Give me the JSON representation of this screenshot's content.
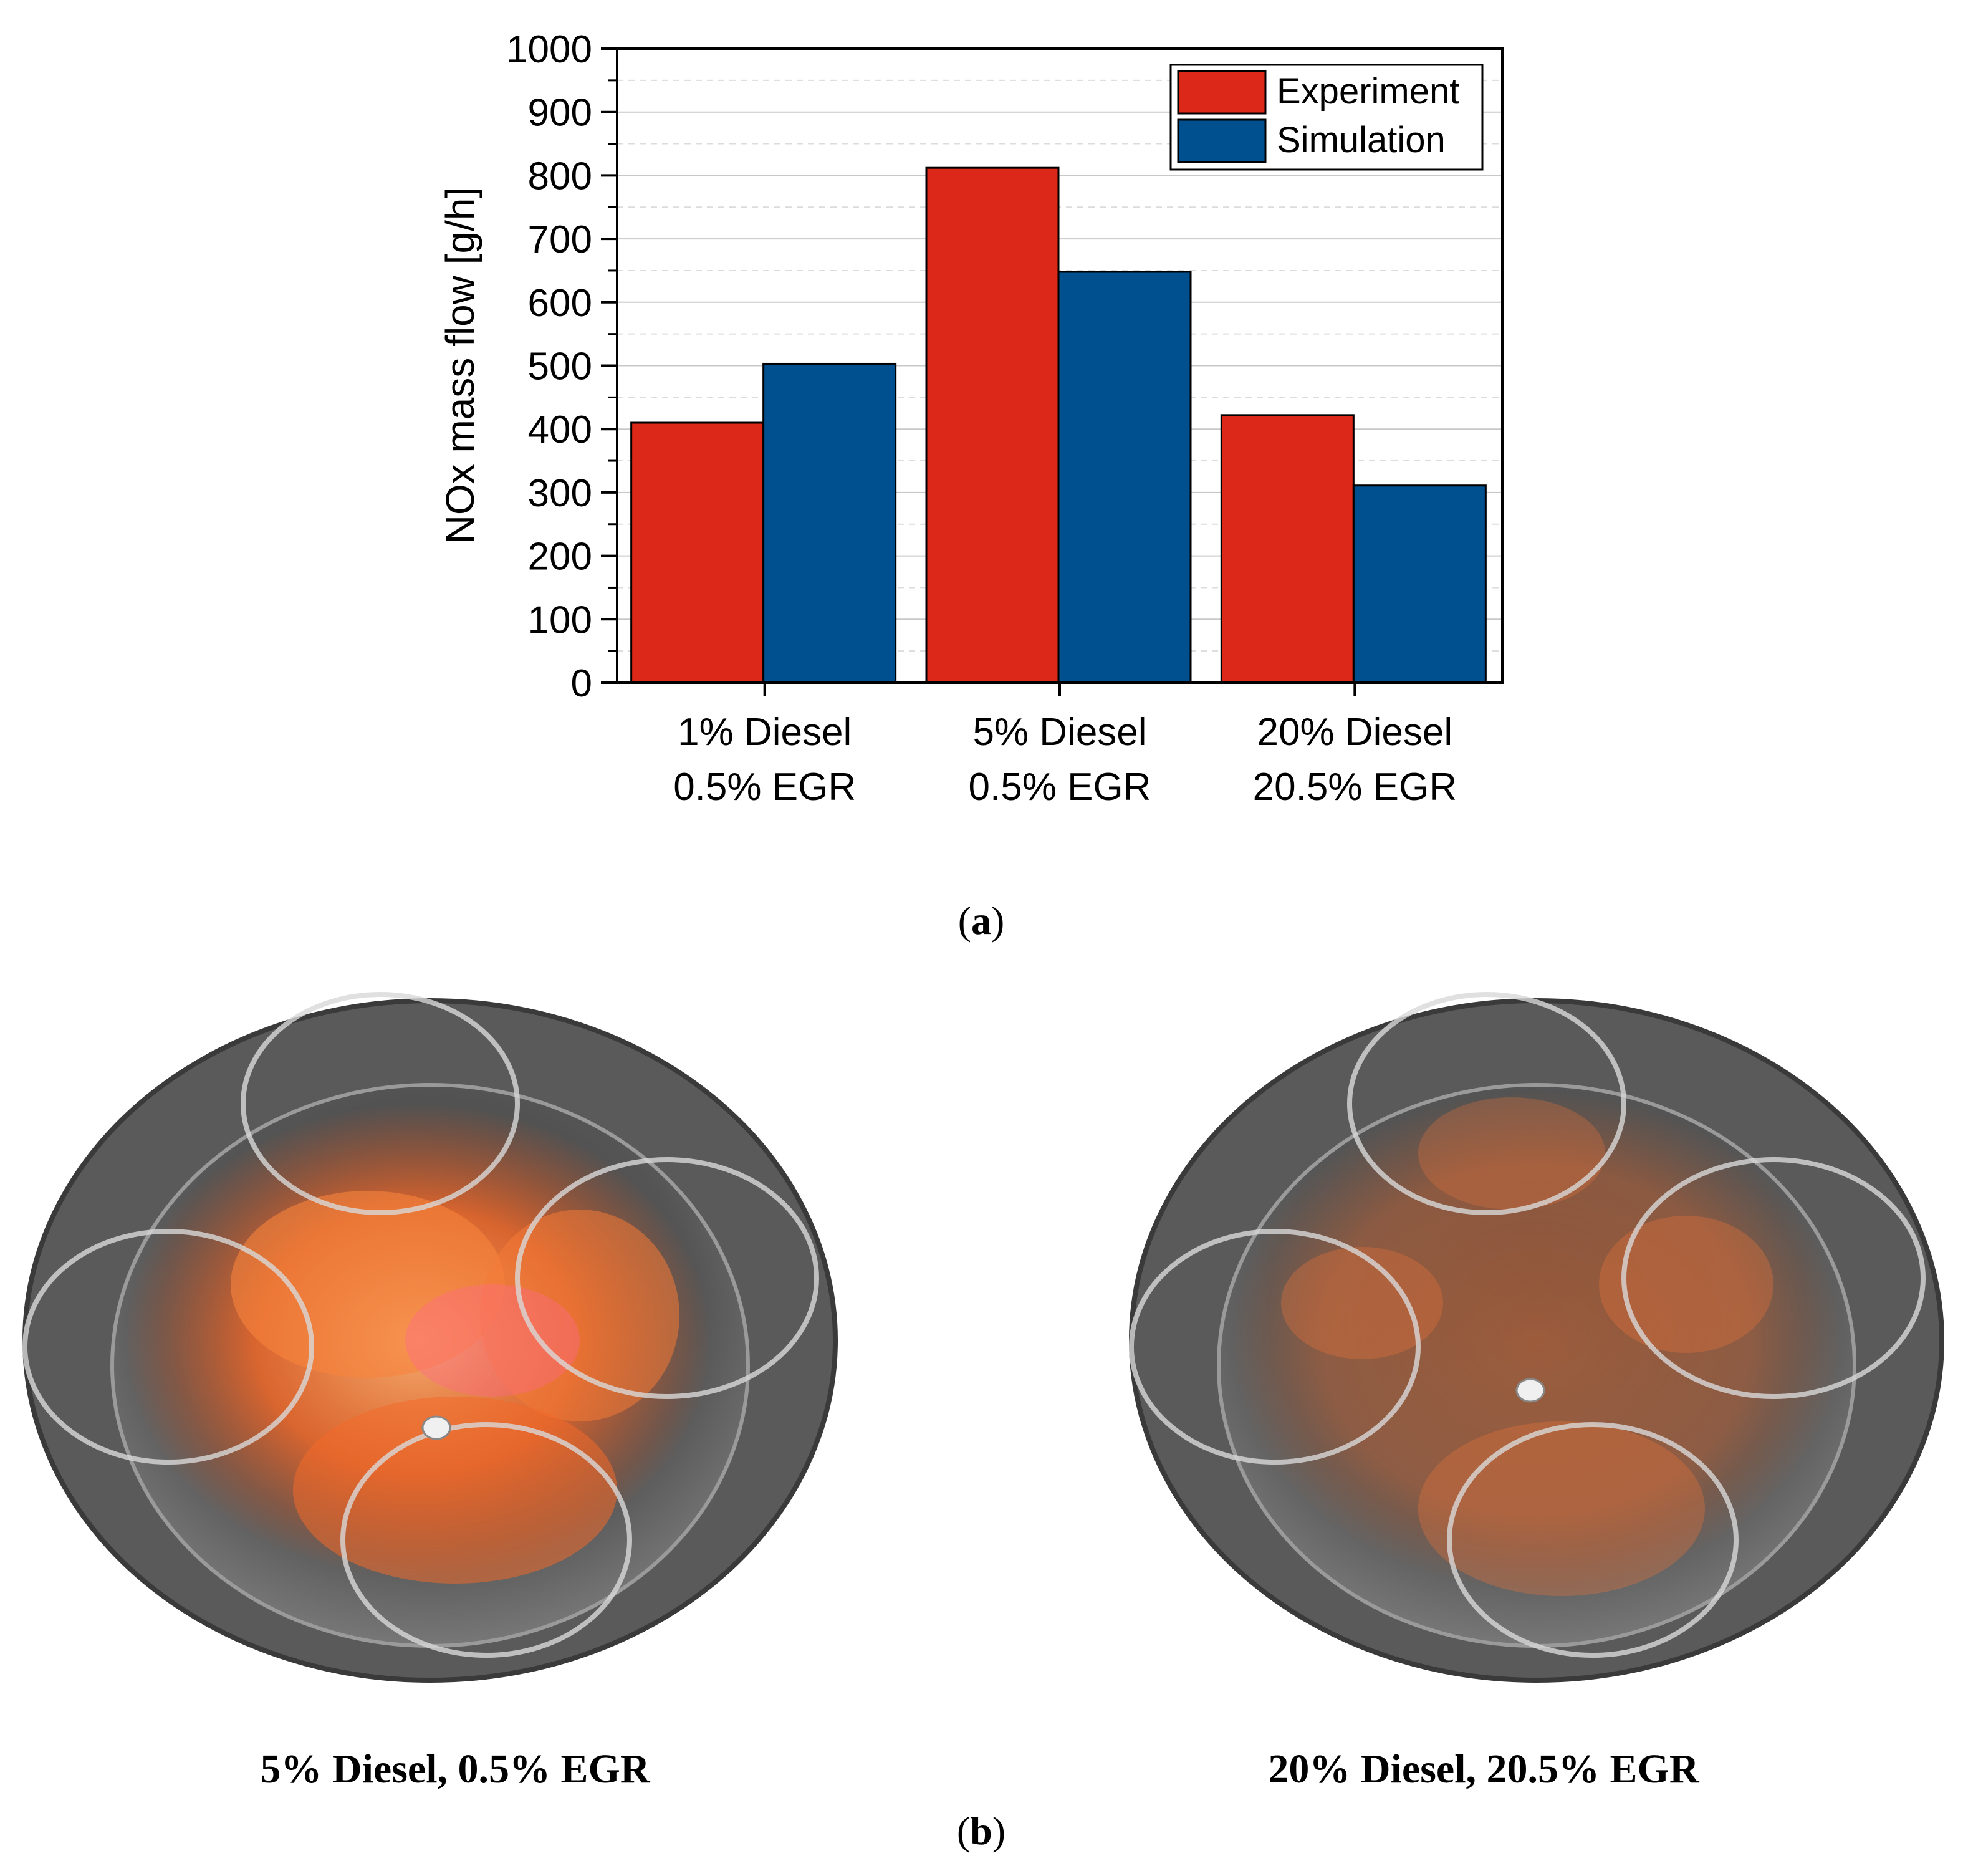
{
  "chart_data": {
    "type": "bar",
    "categories": [
      [
        "1% Diesel",
        "0.5% EGR"
      ],
      [
        "5% Diesel",
        "0.5% EGR"
      ],
      [
        "20% Diesel",
        "20.5% EGR"
      ]
    ],
    "series": [
      {
        "name": "Experiment",
        "color": "#dc2818",
        "values": [
          410,
          812,
          422
        ]
      },
      {
        "name": "Simulation",
        "color": "#00508f",
        "values": [
          503,
          648,
          311
        ]
      }
    ],
    "title": "",
    "xlabel": "",
    "ylabel": "NOx mass flow [g/h]",
    "ylim": [
      0,
      1000
    ],
    "yticks": [
      0,
      100,
      200,
      300,
      400,
      500,
      600,
      700,
      800,
      900,
      1000
    ],
    "grid": true,
    "legend_position": "top-right"
  },
  "captions": {
    "panel_a_letter": "a",
    "panel_b_letter": "b",
    "left_chamber": "5% Diesel, 0.5% EGR",
    "right_chamber": "20% Diesel, 20.5% EGR"
  },
  "colors": {
    "flame_strong": "#f36a2a",
    "flame_weak": "#e8743a",
    "chamber_dark": "#4a4a4a",
    "chamber_light": "#8a8a8a"
  }
}
